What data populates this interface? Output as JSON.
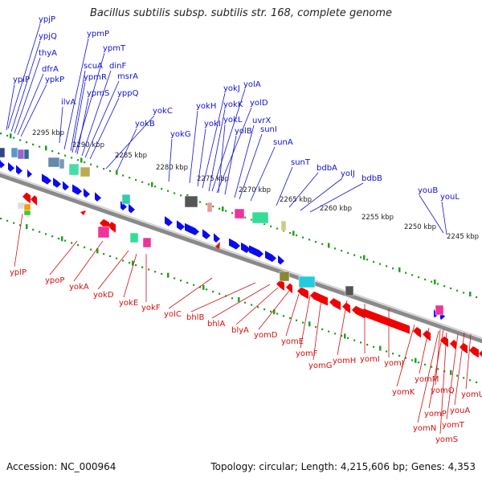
{
  "title": "Bacillus subtilis subsp. subtilis str. 168, complete genome",
  "accession_label": "Accession: NC_000964",
  "topology_label": "Topology: circular; Length: 4,215,606 bp; Genes: 4,353",
  "colors": {
    "forward_gene": "#0a0af0",
    "reverse_gene": "#f00000",
    "forward_label": "#1010d0",
    "reverse_label": "#d01010",
    "tick": "#20a020",
    "backbone": "#8a8a8a",
    "kbp_text": "#222222"
  },
  "kbp_ticks": [
    "2295 kbp",
    "2290 kbp",
    "2285 kbp",
    "2280 kbp",
    "2275 kbp",
    "2270 kbp",
    "2265 kbp",
    "2260 kbp",
    "2255 kbp",
    "2250 kbp",
    "2245 kbp"
  ],
  "forward_labels": [
    "ypjP",
    "ypjQ",
    "thyA",
    "dfrA",
    "ypiP",
    "ypkP",
    "ilvA",
    "ypmP",
    "ypmT",
    "scuA",
    "ypmR",
    "dinF",
    "msrA",
    "ypmS",
    "yppQ",
    "yokC",
    "yokB",
    "yokH",
    "yokJ",
    "yolA",
    "yokK",
    "yolD",
    "yokG",
    "yokI",
    "yokL",
    "yolB",
    "uvrX",
    "sunI",
    "sunA",
    "sunT",
    "bdbA",
    "yolJ",
    "bdbB",
    "youB",
    "youL"
  ],
  "reverse_labels": [
    "yplP",
    "ypoP",
    "yokA",
    "yokD",
    "yokE",
    "yokF",
    "yolC",
    "bhlB",
    "bhlA",
    "blyA",
    "yomD",
    "yomE",
    "yomF",
    "yomG",
    "yomH",
    "yomI",
    "yomJ",
    "yomK",
    "yomM",
    "yomQ",
    "yomU",
    "yomP",
    "youA",
    "yomN",
    "yomT",
    "yomS"
  ]
}
